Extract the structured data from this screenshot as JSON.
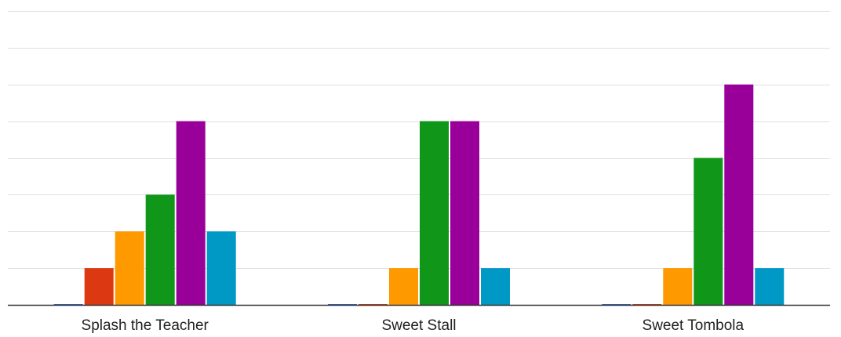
{
  "chart_data": {
    "type": "bar",
    "categories": [
      "Splash the Teacher",
      "Sweet Stall",
      "Sweet Tombola"
    ],
    "series": [
      {
        "color": "#3366cc",
        "values": [
          0,
          0,
          0
        ]
      },
      {
        "color": "#dc3912",
        "values": [
          1,
          0,
          0
        ]
      },
      {
        "color": "#ff9900",
        "values": [
          2,
          1,
          1
        ]
      },
      {
        "color": "#109618",
        "values": [
          3,
          5,
          4
        ]
      },
      {
        "color": "#990099",
        "values": [
          5,
          5,
          6
        ]
      },
      {
        "color": "#0099c6",
        "values": [
          2,
          1,
          1
        ]
      }
    ],
    "ylim": [
      0,
      8
    ],
    "grid": true,
    "legend": "none"
  }
}
